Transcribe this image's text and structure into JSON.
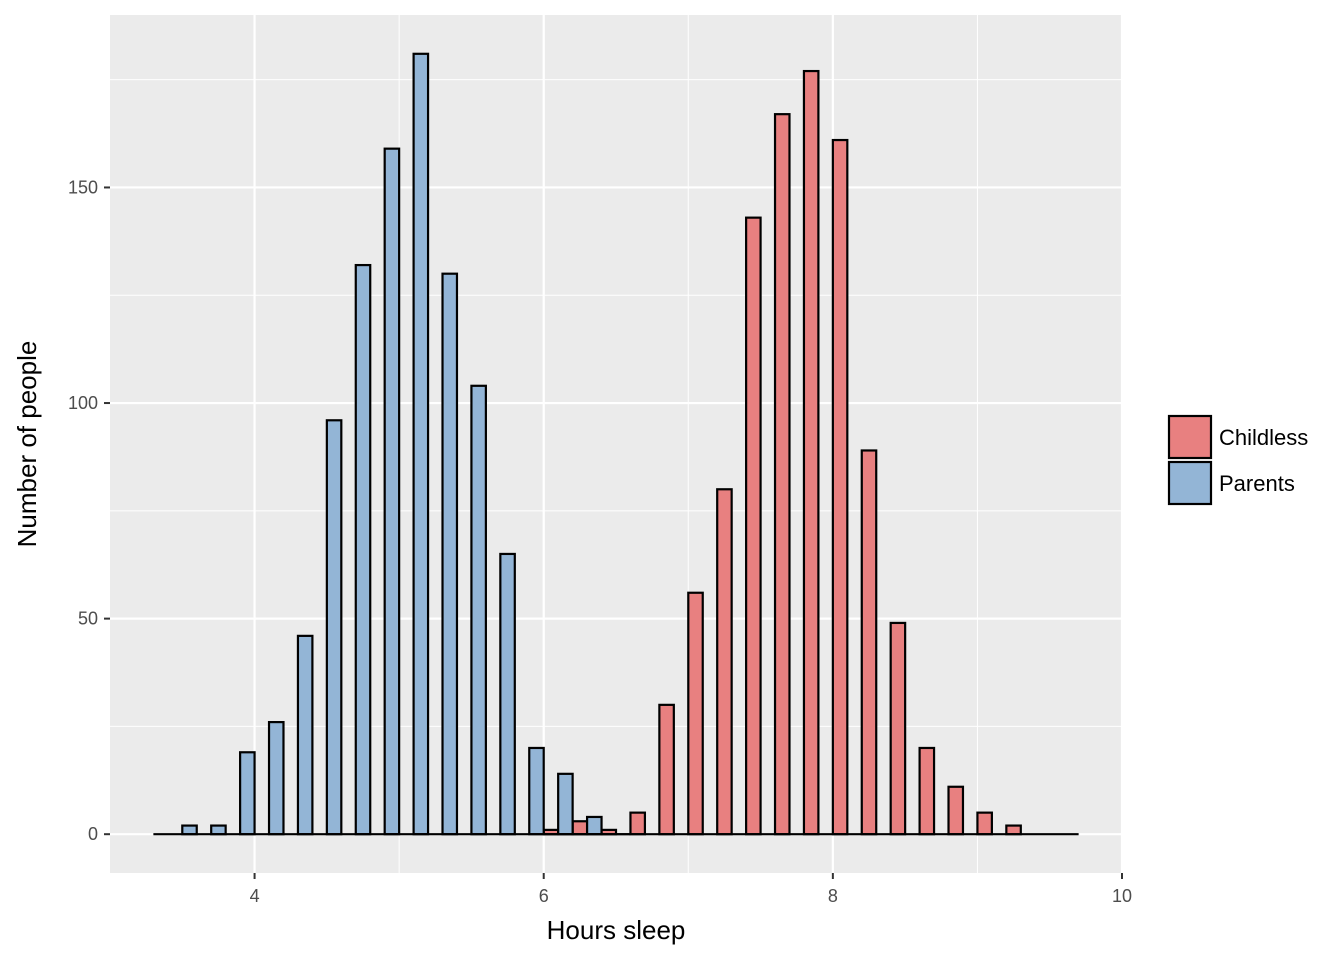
{
  "chart_data": {
    "type": "bar",
    "title": "",
    "xlabel": "Hours sleep",
    "ylabel": "Number of people",
    "xlim": [
      3.0,
      10.0
    ],
    "ylim": [
      -9,
      190
    ],
    "xticks": [
      4,
      6,
      8,
      10
    ],
    "yticks": [
      0,
      50,
      100,
      150
    ],
    "grid": true,
    "legend_position": "right",
    "bin_width": 0.2,
    "series": [
      {
        "name": "Childless",
        "color": "#e88080",
        "x": [
          6.1,
          6.3,
          6.5,
          6.7,
          6.9,
          7.1,
          7.3,
          7.5,
          7.7,
          7.9,
          8.1,
          8.3,
          8.5,
          8.7,
          8.9,
          9.1,
          9.3,
          9.5,
          9.7
        ],
        "values": [
          1,
          3,
          1,
          5,
          30,
          56,
          80,
          143,
          167,
          177,
          161,
          89,
          49,
          20,
          11,
          5,
          2,
          0,
          0
        ]
      },
      {
        "name": "Parents",
        "color": "#93b5d6",
        "x": [
          3.3,
          3.5,
          3.7,
          3.9,
          4.1,
          4.3,
          4.5,
          4.7,
          4.9,
          5.1,
          5.3,
          5.5,
          5.7,
          5.9,
          6.1,
          6.3,
          6.5
        ],
        "values": [
          0,
          2,
          2,
          19,
          26,
          46,
          96,
          132,
          159,
          181,
          130,
          104,
          65,
          20,
          14,
          4,
          0
        ]
      }
    ]
  }
}
